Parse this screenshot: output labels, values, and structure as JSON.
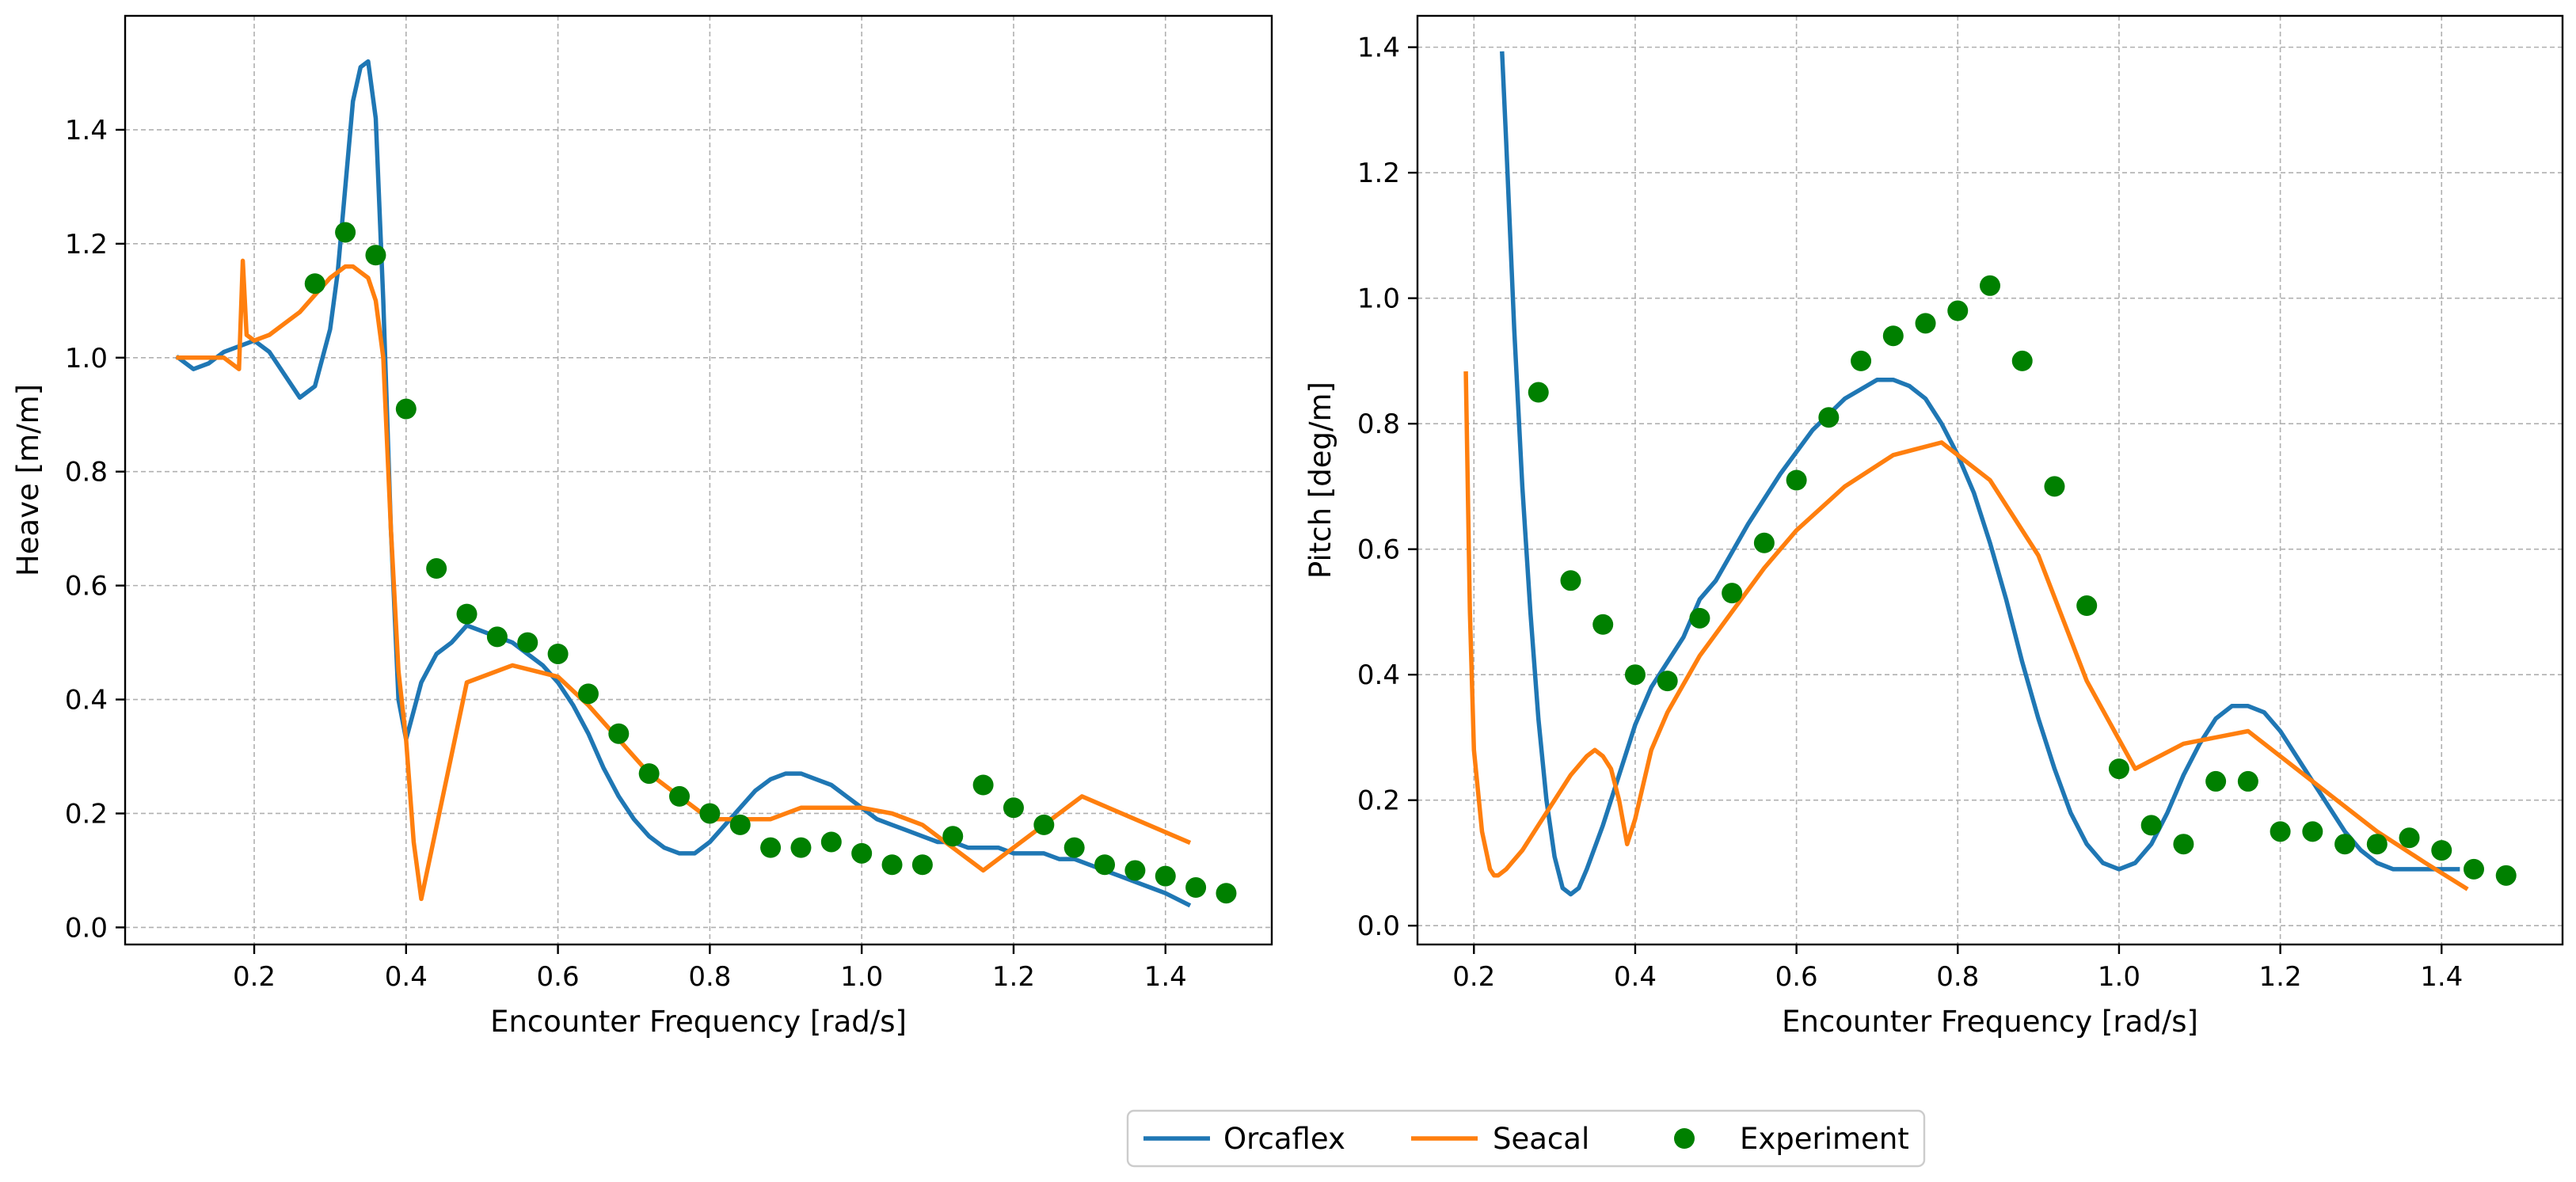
{
  "chart_data": [
    {
      "type": "line",
      "xlabel": "Encounter Frequency [rad/s]",
      "ylabel": "Heave [m/m]",
      "xlim": [
        0.03,
        1.54
      ],
      "ylim": [
        -0.03,
        1.6
      ],
      "xticks": [
        0.2,
        0.4,
        0.6,
        0.8,
        1.0,
        1.2,
        1.4
      ],
      "xtick_labels": [
        "0.2",
        "0.4",
        "0.6",
        "0.8",
        "1.0",
        "1.2",
        "1.4"
      ],
      "yticks": [
        0.0,
        0.2,
        0.4,
        0.6,
        0.8,
        1.0,
        1.2,
        1.4
      ],
      "ytick_labels": [
        "0.0",
        "0.2",
        "0.4",
        "0.6",
        "0.8",
        "1.0",
        "1.2",
        "1.4"
      ],
      "grid": true,
      "series": [
        {
          "name": "Orcaflex",
          "color": "#1f77b4",
          "kind": "line",
          "x": [
            0.1,
            0.12,
            0.14,
            0.16,
            0.18,
            0.2,
            0.22,
            0.24,
            0.26,
            0.28,
            0.3,
            0.31,
            0.32,
            0.33,
            0.34,
            0.35,
            0.36,
            0.37,
            0.38,
            0.39,
            0.4,
            0.41,
            0.42,
            0.44,
            0.46,
            0.48,
            0.5,
            0.52,
            0.54,
            0.56,
            0.58,
            0.6,
            0.62,
            0.64,
            0.66,
            0.68,
            0.7,
            0.72,
            0.74,
            0.76,
            0.78,
            0.8,
            0.82,
            0.84,
            0.86,
            0.88,
            0.9,
            0.92,
            0.94,
            0.96,
            0.98,
            1.0,
            1.02,
            1.04,
            1.06,
            1.08,
            1.1,
            1.12,
            1.14,
            1.16,
            1.18,
            1.2,
            1.22,
            1.24,
            1.26,
            1.28,
            1.3,
            1.32,
            1.34,
            1.36,
            1.38,
            1.4,
            1.43
          ],
          "y": [
            1.0,
            0.98,
            0.99,
            1.01,
            1.02,
            1.03,
            1.01,
            0.97,
            0.93,
            0.95,
            1.05,
            1.15,
            1.3,
            1.45,
            1.51,
            1.52,
            1.42,
            1.1,
            0.7,
            0.4,
            0.33,
            0.38,
            0.43,
            0.48,
            0.5,
            0.53,
            0.52,
            0.51,
            0.5,
            0.48,
            0.46,
            0.43,
            0.39,
            0.34,
            0.28,
            0.23,
            0.19,
            0.16,
            0.14,
            0.13,
            0.13,
            0.15,
            0.18,
            0.21,
            0.24,
            0.26,
            0.27,
            0.27,
            0.26,
            0.25,
            0.23,
            0.21,
            0.19,
            0.18,
            0.17,
            0.16,
            0.15,
            0.15,
            0.14,
            0.14,
            0.14,
            0.13,
            0.13,
            0.13,
            0.12,
            0.12,
            0.11,
            0.1,
            0.09,
            0.08,
            0.07,
            0.06,
            0.04
          ]
        },
        {
          "name": "Seacal",
          "color": "#ff7f0e",
          "kind": "line",
          "x": [
            0.1,
            0.13,
            0.16,
            0.18,
            0.185,
            0.19,
            0.2,
            0.22,
            0.24,
            0.26,
            0.28,
            0.3,
            0.32,
            0.33,
            0.34,
            0.35,
            0.36,
            0.37,
            0.38,
            0.39,
            0.4,
            0.41,
            0.42,
            0.48,
            0.54,
            0.6,
            0.64,
            0.68,
            0.72,
            0.76,
            0.8,
            0.84,
            0.88,
            0.92,
            0.96,
            1.0,
            1.04,
            1.08,
            1.12,
            1.16,
            1.29,
            1.43
          ],
          "y": [
            1.0,
            1.0,
            1.0,
            0.98,
            1.17,
            1.04,
            1.03,
            1.04,
            1.06,
            1.08,
            1.11,
            1.14,
            1.16,
            1.16,
            1.15,
            1.14,
            1.1,
            1.0,
            0.7,
            0.45,
            0.33,
            0.15,
            0.05,
            0.43,
            0.46,
            0.44,
            0.39,
            0.33,
            0.27,
            0.23,
            0.19,
            0.19,
            0.19,
            0.21,
            0.21,
            0.21,
            0.2,
            0.18,
            0.14,
            0.1,
            0.23,
            0.15
          ]
        },
        {
          "name": "Experiment",
          "color": "#008000",
          "kind": "scatter",
          "x": [
            0.28,
            0.32,
            0.36,
            0.4,
            0.44,
            0.48,
            0.52,
            0.56,
            0.6,
            0.64,
            0.68,
            0.72,
            0.76,
            0.8,
            0.84,
            0.88,
            0.92,
            0.96,
            1.0,
            1.04,
            1.08,
            1.12,
            1.16,
            1.2,
            1.24,
            1.28,
            1.32,
            1.36,
            1.4,
            1.44,
            1.48
          ],
          "y": [
            1.13,
            1.22,
            1.18,
            0.91,
            0.63,
            0.55,
            0.51,
            0.5,
            0.48,
            0.41,
            0.34,
            0.27,
            0.23,
            0.2,
            0.18,
            0.14,
            0.14,
            0.15,
            0.13,
            0.11,
            0.11,
            0.16,
            0.25,
            0.21,
            0.18,
            0.14,
            0.11,
            0.1,
            0.09,
            0.07,
            0.06
          ]
        }
      ]
    },
    {
      "type": "line",
      "xlabel": "Encounter Frequency [rad/s]",
      "ylabel": "Pitch [deg/m]",
      "xlim": [
        0.13,
        1.55
      ],
      "ylim": [
        -0.03,
        1.45
      ],
      "xticks": [
        0.2,
        0.4,
        0.6,
        0.8,
        1.0,
        1.2,
        1.4
      ],
      "xtick_labels": [
        "0.2",
        "0.4",
        "0.6",
        "0.8",
        "1.0",
        "1.2",
        "1.4"
      ],
      "yticks": [
        0.0,
        0.2,
        0.4,
        0.6,
        0.8,
        1.0,
        1.2,
        1.4
      ],
      "ytick_labels": [
        "0.0",
        "0.2",
        "0.4",
        "0.6",
        "0.8",
        "1.0",
        "1.2",
        "1.4"
      ],
      "grid": true,
      "series": [
        {
          "name": "Orcaflex",
          "color": "#1f77b4",
          "kind": "line",
          "x": [
            0.235,
            0.24,
            0.25,
            0.26,
            0.27,
            0.28,
            0.29,
            0.3,
            0.31,
            0.32,
            0.33,
            0.34,
            0.36,
            0.38,
            0.4,
            0.42,
            0.44,
            0.46,
            0.48,
            0.5,
            0.54,
            0.58,
            0.62,
            0.66,
            0.7,
            0.72,
            0.74,
            0.76,
            0.78,
            0.8,
            0.82,
            0.84,
            0.86,
            0.88,
            0.9,
            0.92,
            0.94,
            0.96,
            0.98,
            1.0,
            1.02,
            1.04,
            1.06,
            1.08,
            1.1,
            1.12,
            1.14,
            1.16,
            1.18,
            1.2,
            1.22,
            1.24,
            1.26,
            1.28,
            1.3,
            1.32,
            1.34,
            1.36,
            1.38,
            1.4,
            1.42
          ],
          "y": [
            1.39,
            1.25,
            0.95,
            0.7,
            0.5,
            0.33,
            0.2,
            0.11,
            0.06,
            0.05,
            0.06,
            0.09,
            0.16,
            0.24,
            0.32,
            0.38,
            0.42,
            0.46,
            0.52,
            0.55,
            0.64,
            0.72,
            0.79,
            0.84,
            0.87,
            0.87,
            0.86,
            0.84,
            0.8,
            0.75,
            0.69,
            0.61,
            0.52,
            0.42,
            0.33,
            0.25,
            0.18,
            0.13,
            0.1,
            0.09,
            0.1,
            0.13,
            0.18,
            0.24,
            0.29,
            0.33,
            0.35,
            0.35,
            0.34,
            0.31,
            0.27,
            0.23,
            0.19,
            0.15,
            0.12,
            0.1,
            0.09,
            0.09,
            0.09,
            0.09,
            0.09
          ]
        },
        {
          "name": "Seacal",
          "color": "#ff7f0e",
          "kind": "line",
          "x": [
            0.19,
            0.195,
            0.2,
            0.21,
            0.22,
            0.225,
            0.23,
            0.24,
            0.26,
            0.28,
            0.3,
            0.32,
            0.34,
            0.35,
            0.36,
            0.37,
            0.38,
            0.39,
            0.4,
            0.42,
            0.44,
            0.48,
            0.52,
            0.56,
            0.6,
            0.66,
            0.72,
            0.78,
            0.84,
            0.9,
            0.96,
            1.02,
            1.08,
            1.16,
            1.24,
            1.32,
            1.38,
            1.43
          ],
          "y": [
            0.88,
            0.5,
            0.28,
            0.15,
            0.09,
            0.08,
            0.08,
            0.09,
            0.12,
            0.16,
            0.2,
            0.24,
            0.27,
            0.28,
            0.27,
            0.25,
            0.2,
            0.13,
            0.17,
            0.28,
            0.34,
            0.43,
            0.5,
            0.57,
            0.63,
            0.7,
            0.75,
            0.77,
            0.71,
            0.59,
            0.39,
            0.25,
            0.29,
            0.31,
            0.23,
            0.15,
            0.1,
            0.06
          ]
        },
        {
          "name": "Experiment",
          "color": "#008000",
          "kind": "scatter",
          "x": [
            0.28,
            0.32,
            0.36,
            0.4,
            0.44,
            0.48,
            0.52,
            0.56,
            0.6,
            0.64,
            0.68,
            0.72,
            0.76,
            0.8,
            0.84,
            0.88,
            0.92,
            0.96,
            1.0,
            1.04,
            1.08,
            1.12,
            1.16,
            1.2,
            1.24,
            1.28,
            1.32,
            1.36,
            1.4,
            1.44,
            1.48
          ],
          "y": [
            0.85,
            0.55,
            0.48,
            0.4,
            0.39,
            0.49,
            0.53,
            0.61,
            0.71,
            0.81,
            0.9,
            0.94,
            0.96,
            0.98,
            1.02,
            0.9,
            0.7,
            0.51,
            0.25,
            0.16,
            0.13,
            0.23,
            0.23,
            0.15,
            0.15,
            0.13,
            0.13,
            0.14,
            0.12,
            0.09,
            0.08
          ]
        }
      ]
    }
  ],
  "legend": {
    "position": "bottom-center",
    "entries": [
      {
        "label": "Orcaflex",
        "color": "#1f77b4",
        "kind": "line"
      },
      {
        "label": "Seacal",
        "color": "#ff7f0e",
        "kind": "line"
      },
      {
        "label": "Experiment",
        "color": "#008000",
        "kind": "marker"
      }
    ]
  }
}
